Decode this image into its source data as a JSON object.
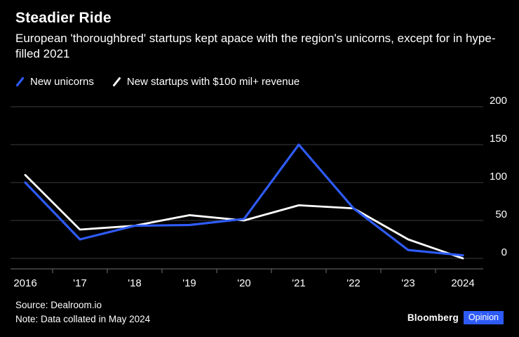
{
  "header": {
    "title": "Steadier Ride",
    "subtitle": "European 'thoroughbred' startups kept apace with the region's unicorns, except for in hype-filled 2021"
  },
  "legend": {
    "items": [
      {
        "label": "New unicorns",
        "color": "#2e5bf7"
      },
      {
        "label": "New startups with $100 mil+ revenue",
        "color": "#ffffff"
      }
    ]
  },
  "chart_data": {
    "type": "line",
    "title": "Steadier Ride",
    "categories": [
      "2016",
      "'17",
      "'18",
      "'19",
      "'20",
      "'21",
      "'22",
      "'23",
      "2024"
    ],
    "series": [
      {
        "name": "New unicorns",
        "color": "#2e5bf7",
        "values": [
          100,
          25,
          43,
          44,
          52,
          150,
          66,
          11,
          4
        ]
      },
      {
        "name": "New startups with $100 mil+ revenue",
        "color": "#ffffff",
        "values": [
          110,
          38,
          43,
          57,
          50,
          70,
          66,
          25,
          0
        ]
      }
    ],
    "xlabel": "",
    "ylabel": "",
    "ylim": [
      0,
      200
    ],
    "yticks": [
      0,
      50,
      100,
      150,
      200
    ],
    "grid": "horizontal",
    "legend_position": "top-left",
    "axis_side": "right",
    "colors": {
      "grid": "#3a3d42",
      "axis": "#6d7076",
      "text": "#ffffff",
      "background": "#000000"
    }
  },
  "footer": {
    "source": "Source: Dealroom.io",
    "note": "Note: Data collated in May 2024",
    "brand": "Bloomberg",
    "brand_suffix": "Opinion",
    "brand_color": "#2e5bf7"
  }
}
